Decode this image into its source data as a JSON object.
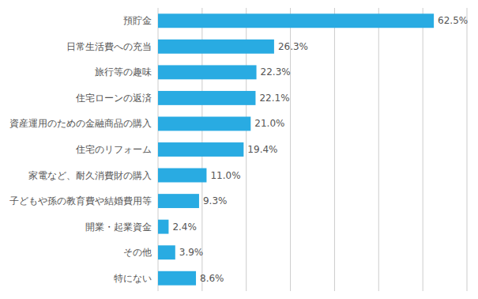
{
  "chart_data": {
    "type": "bar",
    "orientation": "horizontal",
    "categories": [
      "特にない",
      "その他",
      "開業・起業資金",
      "子どもや孫の教育費や結婚費用等",
      "家電など、耐久消費財の購入",
      "住宅のリフォーム",
      "資産運用のための金融商品の購入",
      "住宅ローンの返済",
      "旅行等の趣味",
      "日常生活費への充当",
      "預貯金"
    ],
    "values": [
      8.6,
      3.9,
      2.4,
      9.3,
      11.0,
      19.4,
      21.0,
      22.1,
      22.3,
      26.3,
      62.5
    ],
    "value_labels": [
      "8.6%",
      "3.9%",
      "2.4%",
      "9.3%",
      "11.0%",
      "19.4%",
      "21.0%",
      "22.1%",
      "22.3%",
      "26.3%",
      "62.5%"
    ],
    "color": "#29ABE2",
    "xlim": [
      0,
      70
    ],
    "xticks": [
      0,
      10,
      20,
      30,
      40,
      50,
      60,
      70
    ],
    "grid": true,
    "data_labels": true,
    "tick_labels": "y"
  }
}
